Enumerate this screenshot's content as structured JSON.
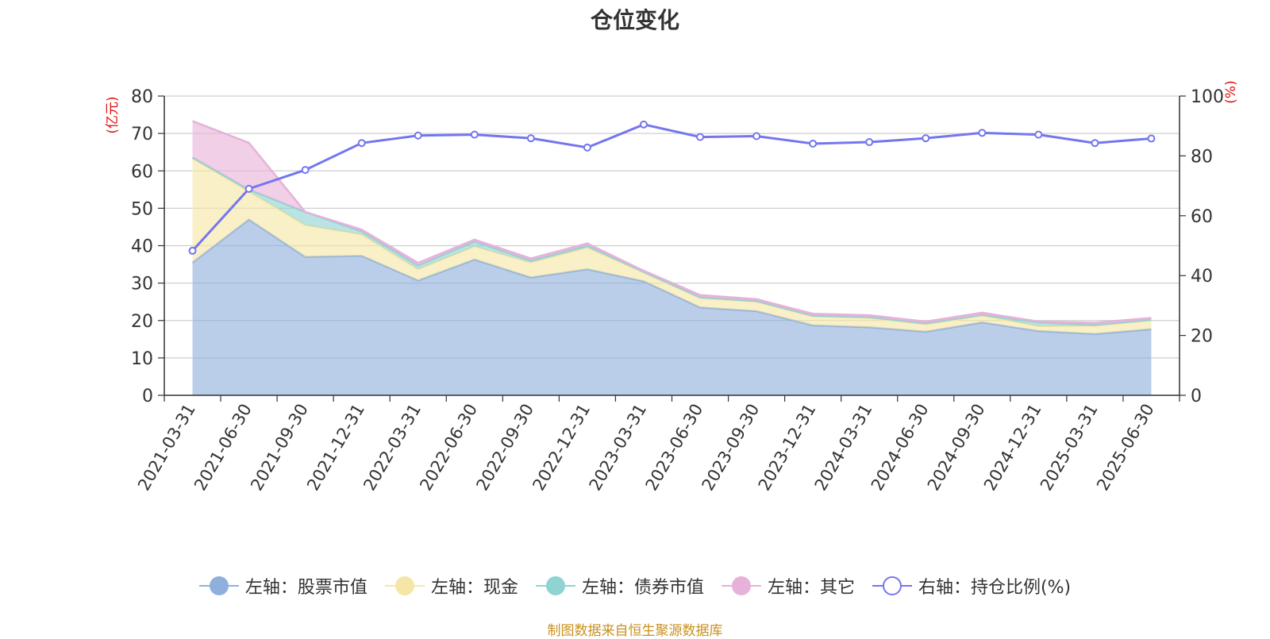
{
  "title": "仓位变化",
  "source": "制图数据来自恒生聚源数据库",
  "colors": {
    "stock": "#8fb0dc",
    "cash": "#f6e6a6",
    "bond": "#8fd3d3",
    "other": "#e6b2d9",
    "ratio": "#7476ee",
    "axis_unit": "#e01010",
    "source": "#c8911e"
  },
  "legend": [
    {
      "key": "stock",
      "label": "左轴：股票市值",
      "marker": "filled-circle"
    },
    {
      "key": "cash",
      "label": "左轴：现金",
      "marker": "filled-circle"
    },
    {
      "key": "bond",
      "label": "左轴：债券市值",
      "marker": "filled-circle"
    },
    {
      "key": "other",
      "label": "左轴：其它",
      "marker": "filled-circle"
    },
    {
      "key": "ratio",
      "label": "右轴：持仓比例(%)",
      "marker": "hollow-circle"
    }
  ],
  "chart_data": {
    "type": "area",
    "stacked": true,
    "title": "仓位变化",
    "y_left": {
      "unit": "(亿元)",
      "min": 0,
      "max": 80,
      "ticks": [
        0,
        10,
        20,
        30,
        40,
        50,
        60,
        70,
        80
      ]
    },
    "y_right": {
      "unit": "(%)",
      "min": 0,
      "max": 100,
      "ticks": [
        0,
        20,
        40,
        60,
        80,
        100
      ]
    },
    "grid": true,
    "legend_position": "bottom",
    "categories": [
      "2021-03-31",
      "2021-06-30",
      "2021-09-30",
      "2021-12-31",
      "2022-03-31",
      "2022-06-30",
      "2022-09-30",
      "2022-12-31",
      "2023-03-31",
      "2023-06-30",
      "2023-09-30",
      "2023-12-31",
      "2024-03-31",
      "2024-06-30",
      "2024-09-30",
      "2024-12-31",
      "2025-03-31",
      "2025-06-30"
    ],
    "series": [
      {
        "name": "左轴：股票市值",
        "key": "stock",
        "axis": "left",
        "type": "area",
        "values": [
          35.5,
          47.0,
          37.0,
          37.3,
          30.7,
          36.3,
          31.5,
          33.7,
          30.5,
          23.5,
          22.5,
          18.7,
          18.2,
          17.0,
          19.5,
          17.2,
          16.4,
          17.7
        ]
      },
      {
        "name": "左轴：现金",
        "key": "cash",
        "axis": "left",
        "type": "area",
        "values": [
          27.8,
          7.5,
          8.5,
          5.7,
          3.0,
          3.5,
          4.0,
          5.8,
          2.3,
          2.5,
          2.5,
          2.4,
          2.5,
          2.0,
          1.8,
          1.3,
          2.2,
          2.3
        ]
      },
      {
        "name": "左轴：债券市值",
        "key": "bond",
        "axis": "left",
        "type": "area",
        "values": [
          0.3,
          0.5,
          3.5,
          0.8,
          1.0,
          1.3,
          0.5,
          0.5,
          0.2,
          0.2,
          0.2,
          0.2,
          0.2,
          0.2,
          0.2,
          1.0,
          0.2,
          0.2
        ]
      },
      {
        "name": "左轴：其它",
        "key": "other",
        "axis": "left",
        "type": "area",
        "values": [
          9.7,
          12.5,
          0.0,
          0.5,
          0.7,
          0.5,
          0.6,
          0.6,
          0.3,
          0.6,
          0.5,
          0.5,
          0.5,
          0.5,
          0.6,
          0.2,
          0.6,
          0.5
        ]
      },
      {
        "name": "右轴：持仓比例(%)",
        "key": "ratio",
        "axis": "right",
        "type": "line",
        "values": [
          48.3,
          69.0,
          75.3,
          84.3,
          86.8,
          87.1,
          85.9,
          82.8,
          90.5,
          86.3,
          86.6,
          84.1,
          84.6,
          85.9,
          87.7,
          87.1,
          84.3,
          85.8
        ]
      }
    ]
  }
}
